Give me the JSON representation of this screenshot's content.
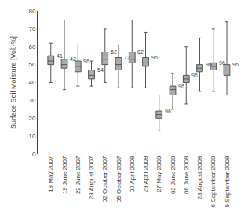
{
  "chart_data": {
    "type": "box",
    "ylabel": "Surface Soil Moisture [Vol.-%]",
    "categories": [
      "18 May 2007",
      "19 June 2007",
      "22 June 2007",
      "28 August 2007",
      "02 October 2007",
      "05 October 2007",
      "02 April 2008",
      "29 April 2008",
      "27 May 2008",
      "03 June 2008",
      "06 June 2008",
      "28 August 2008",
      "6 September 2008",
      "9 September 2008"
    ],
    "boxes": [
      {
        "whislo": 40,
        "q1": 50,
        "med": 52,
        "q3": 55,
        "whishi": 62
      },
      {
        "whislo": 36,
        "q1": 48,
        "med": 50,
        "q3": 53,
        "whishi": 75
      },
      {
        "whislo": 38,
        "q1": 46,
        "med": 49,
        "q3": 52,
        "whishi": 61
      },
      {
        "whislo": 38,
        "q1": 42,
        "med": 44,
        "q3": 47,
        "whishi": 52
      },
      {
        "whislo": 40,
        "q1": 50,
        "med": 53,
        "q3": 57,
        "whishi": 70
      },
      {
        "whislo": 37,
        "q1": 47,
        "med": 50,
        "q3": 54,
        "whishi": 61
      },
      {
        "whislo": 37,
        "q1": 51,
        "med": 53,
        "q3": 57,
        "whishi": 75
      },
      {
        "whislo": 37,
        "q1": 49,
        "med": 51,
        "q3": 54,
        "whishi": 68
      },
      {
        "whislo": 13,
        "q1": 20,
        "med": 22,
        "q3": 24,
        "whishi": 33
      },
      {
        "whislo": 25,
        "q1": 33,
        "med": 36,
        "q3": 38,
        "whishi": 45
      },
      {
        "whislo": 28,
        "q1": 40,
        "med": 42,
        "q3": 44,
        "whishi": 60
      },
      {
        "whislo": 35,
        "q1": 46,
        "med": 48,
        "q3": 50,
        "whishi": 65
      },
      {
        "whislo": 35,
        "q1": 47,
        "med": 49,
        "q3": 51,
        "whishi": 70
      },
      {
        "whislo": 33,
        "q1": 44,
        "med": 47,
        "q3": 50,
        "whishi": 74
      }
    ],
    "n": [
      41,
      42,
      96,
      54,
      52,
      72,
      82,
      96,
      96,
      96,
      96,
      96,
      96,
      96
    ],
    "color": "#555555",
    "ylim": [
      0,
      80
    ],
    "yticks": [
      0,
      10,
      20,
      30,
      40,
      50,
      60,
      70,
      80
    ],
    "grid": false
  }
}
